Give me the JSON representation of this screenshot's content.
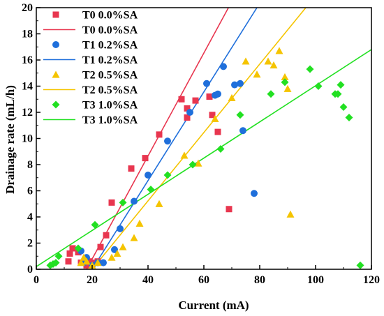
{
  "chart_data": {
    "type": "scatter",
    "xlabel": "Current (mA)",
    "ylabel": "Drainage rate (mL/h)",
    "xlim": [
      0,
      120
    ],
    "ylim": [
      0,
      20
    ],
    "xticks": [
      0,
      20,
      40,
      60,
      80,
      100,
      120
    ],
    "yticks": [
      0,
      2,
      4,
      6,
      8,
      10,
      12,
      14,
      16,
      18,
      20
    ],
    "grid": false,
    "legend_position": "top-left",
    "series": [
      {
        "name": "T0 0.0%SA",
        "marker": "square",
        "color": "#e8364f",
        "points": [
          [
            11.5,
            0.6
          ],
          [
            12,
            1.2
          ],
          [
            13,
            1.6
          ],
          [
            15,
            1.3
          ],
          [
            16,
            0.5
          ],
          [
            18,
            0.3
          ],
          [
            19,
            0.6
          ],
          [
            20,
            0.4
          ],
          [
            21,
            0.5
          ],
          [
            22,
            0.6
          ],
          [
            23,
            1.7
          ],
          [
            25,
            2.6
          ],
          [
            27,
            5.1
          ],
          [
            34,
            7.7
          ],
          [
            39,
            8.5
          ],
          [
            44,
            10.3
          ],
          [
            52,
            13.0
          ],
          [
            54,
            11.6
          ],
          [
            54,
            12.3
          ],
          [
            57,
            12.9
          ],
          [
            62,
            13.2
          ],
          [
            63,
            11.8
          ],
          [
            65,
            10.5
          ],
          [
            69,
            4.6
          ]
        ]
      },
      {
        "name": "T1 0.2%SA",
        "marker": "circle",
        "color": "#1f6fdb",
        "points": [
          [
            16,
            1.4
          ],
          [
            17,
            0.5
          ],
          [
            18,
            0.9
          ],
          [
            20,
            0.3
          ],
          [
            22,
            0.5
          ],
          [
            24,
            0.5
          ],
          [
            28,
            1.5
          ],
          [
            30,
            3.1
          ],
          [
            35,
            5.2
          ],
          [
            40,
            7.2
          ],
          [
            47,
            9.8
          ],
          [
            55,
            12.0
          ],
          [
            61,
            14.2
          ],
          [
            64,
            13.3
          ],
          [
            65,
            13.4
          ],
          [
            67,
            15.5
          ],
          [
            71,
            14.1
          ],
          [
            73,
            14.2
          ],
          [
            74,
            10.6
          ],
          [
            78,
            5.8
          ]
        ]
      },
      {
        "name": "T2 0.5%SA",
        "marker": "triangle",
        "color": "#f5c400",
        "points": [
          [
            16,
            0.5
          ],
          [
            17,
            0.9
          ],
          [
            18,
            0.6
          ],
          [
            20,
            0.3
          ],
          [
            22,
            0.5
          ],
          [
            27,
            0.9
          ],
          [
            29,
            1.2
          ],
          [
            31,
            1.7
          ],
          [
            35,
            2.4
          ],
          [
            37,
            3.5
          ],
          [
            44,
            5.0
          ],
          [
            53,
            8.7
          ],
          [
            58,
            8.1
          ],
          [
            64,
            11.5
          ],
          [
            70,
            13.1
          ],
          [
            75,
            15.9
          ],
          [
            79,
            14.9
          ],
          [
            83,
            15.9
          ],
          [
            85,
            15.6
          ],
          [
            87,
            16.7
          ],
          [
            89,
            14.7
          ],
          [
            90,
            13.8
          ],
          [
            91,
            4.2
          ]
        ]
      },
      {
        "name": "T3 1.0%SA",
        "marker": "diamond",
        "color": "#22e022",
        "points": [
          [
            5,
            0.3
          ],
          [
            6,
            0.4
          ],
          [
            7,
            0.5
          ],
          [
            8,
            1.0
          ],
          [
            15,
            1.6
          ],
          [
            21,
            3.4
          ],
          [
            31,
            5.1
          ],
          [
            41,
            6.1
          ],
          [
            47,
            7.2
          ],
          [
            56,
            8.0
          ],
          [
            66,
            9.2
          ],
          [
            73,
            11.8
          ],
          [
            84,
            13.4
          ],
          [
            89,
            14.3
          ],
          [
            98,
            15.3
          ],
          [
            101,
            14.0
          ],
          [
            107,
            13.4
          ],
          [
            108,
            13.4
          ],
          [
            109,
            14.1
          ],
          [
            110,
            12.4
          ],
          [
            112,
            11.6
          ],
          [
            116,
            0.3
          ]
        ]
      }
    ],
    "fit_lines": [
      {
        "name": "T0 0.0%SA",
        "color": "#e8364f",
        "from": [
          18,
          0
        ],
        "to": [
          68.8,
          20
        ]
      },
      {
        "name": "T1 0.2%SA",
        "color": "#1f6fdb",
        "from": [
          20,
          0
        ],
        "to": [
          79,
          20
        ]
      },
      {
        "name": "T2 0.5%SA",
        "color": "#f5c400",
        "from": [
          20,
          0
        ],
        "to": [
          96.5,
          20
        ]
      },
      {
        "name": "T3 1.0%SA",
        "color": "#22e022",
        "from": [
          0,
          0.2
        ],
        "to": [
          120,
          16.8
        ]
      }
    ]
  }
}
